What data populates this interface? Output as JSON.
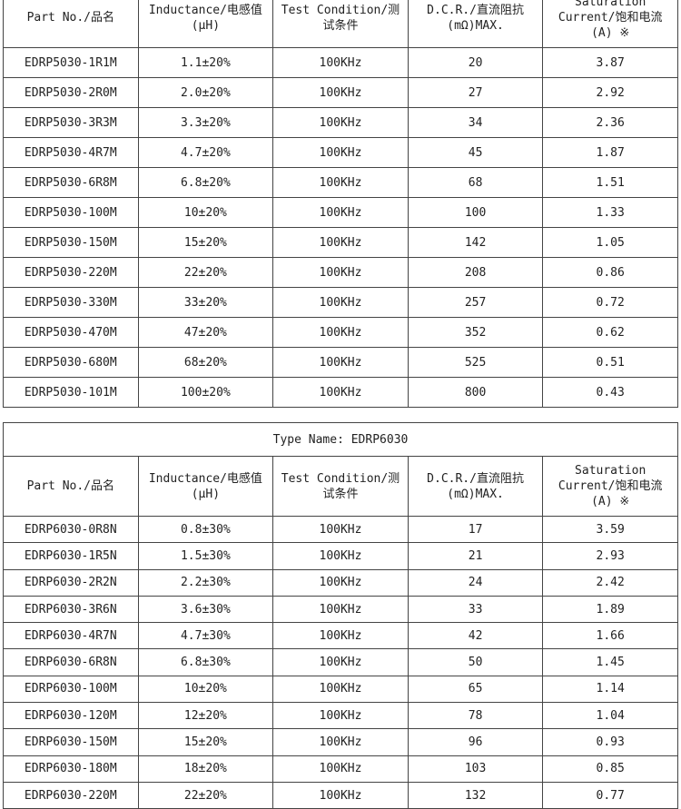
{
  "headers": [
    "Part No./品名",
    "Inductance/电感值\n(μH)",
    "Test Condition/测\n试条件",
    "D.C.R./直流阻抗\n(mΩ)MAX.",
    "Saturation\nCurrent/饱和电流\n(A) ※"
  ],
  "table1": {
    "rows": [
      [
        "EDRP5030-1R1M",
        "1.1±20%",
        "100KHz",
        "20",
        "3.87"
      ],
      [
        "EDRP5030-2R0M",
        "2.0±20%",
        "100KHz",
        "27",
        "2.92"
      ],
      [
        "EDRP5030-3R3M",
        "3.3±20%",
        "100KHz",
        "34",
        "2.36"
      ],
      [
        "EDRP5030-4R7M",
        "4.7±20%",
        "100KHz",
        "45",
        "1.87"
      ],
      [
        "EDRP5030-6R8M",
        "6.8±20%",
        "100KHz",
        "68",
        "1.51"
      ],
      [
        "EDRP5030-100M",
        "10±20%",
        "100KHz",
        "100",
        "1.33"
      ],
      [
        "EDRP5030-150M",
        "15±20%",
        "100KHz",
        "142",
        "1.05"
      ],
      [
        "EDRP5030-220M",
        "22±20%",
        "100KHz",
        "208",
        "0.86"
      ],
      [
        "EDRP5030-330M",
        "33±20%",
        "100KHz",
        "257",
        "0.72"
      ],
      [
        "EDRP5030-470M",
        "47±20%",
        "100KHz",
        "352",
        "0.62"
      ],
      [
        "EDRP5030-680M",
        "68±20%",
        "100KHz",
        "525",
        "0.51"
      ],
      [
        "EDRP5030-101M",
        "100±20%",
        "100KHz",
        "800",
        "0.43"
      ]
    ]
  },
  "table2": {
    "type_name": "Type Name: EDRP6030",
    "rows": [
      [
        "EDRP6030-0R8N",
        "0.8±30%",
        "100KHz",
        "17",
        "3.59"
      ],
      [
        "EDRP6030-1R5N",
        "1.5±30%",
        "100KHz",
        "21",
        "2.93"
      ],
      [
        "EDRP6030-2R2N",
        "2.2±30%",
        "100KHz",
        "24",
        "2.42"
      ],
      [
        "EDRP6030-3R6N",
        "3.6±30%",
        "100KHz",
        "33",
        "1.89"
      ],
      [
        "EDRP6030-4R7N",
        "4.7±30%",
        "100KHz",
        "42",
        "1.66"
      ],
      [
        "EDRP6030-6R8N",
        "6.8±30%",
        "100KHz",
        "50",
        "1.45"
      ],
      [
        "EDRP6030-100M",
        "10±20%",
        "100KHz",
        "65",
        "1.14"
      ],
      [
        "EDRP6030-120M",
        "12±20%",
        "100KHz",
        "78",
        "1.04"
      ],
      [
        "EDRP6030-150M",
        "15±20%",
        "100KHz",
        "96",
        "0.93"
      ],
      [
        "EDRP6030-180M",
        "18±20%",
        "100KHz",
        "103",
        "0.85"
      ],
      [
        "EDRP6030-220M",
        "22±20%",
        "100KHz",
        "132",
        "0.77"
      ]
    ]
  }
}
